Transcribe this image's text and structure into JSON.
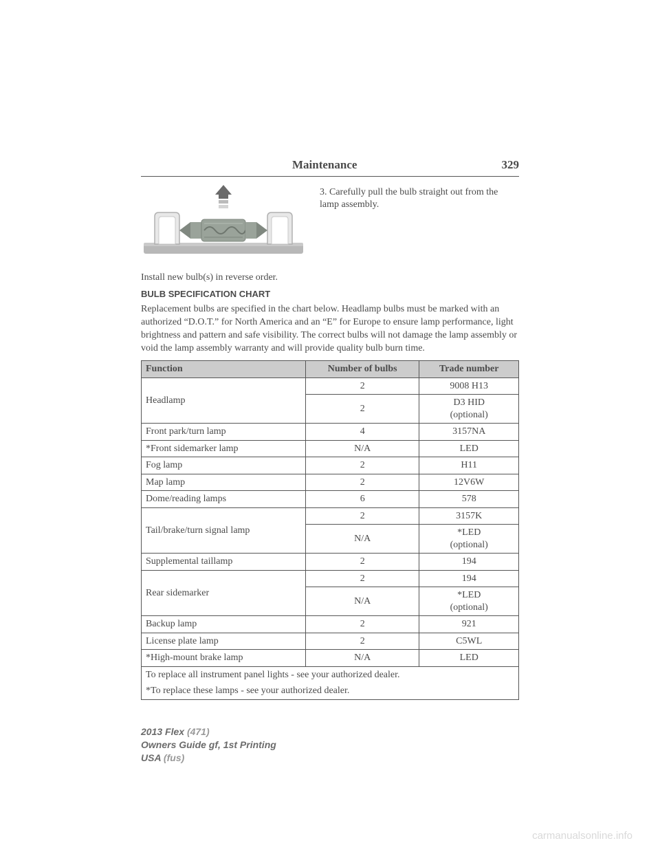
{
  "header": {
    "title": "Maintenance",
    "page_number": "329"
  },
  "step_text": "3. Carefully pull the bulb straight out from the lamp assembly.",
  "install_text": "Install new bulb(s) in reverse order.",
  "chart_heading": "BULB SPECIFICATION CHART",
  "intro_paragraph": "Replacement bulbs are specified in the chart below. Headlamp bulbs must be marked with an authorized “D.O.T.” for North America and an “E” for Europe to ensure lamp performance, light brightness and pattern and safe visibility. The correct bulbs will not damage the lamp assembly or void the lamp assembly warranty and will provide quality bulb burn time.",
  "table": {
    "columns": [
      "Function",
      "Number of bulbs",
      "Trade number"
    ],
    "rows": [
      {
        "func": "Headlamp",
        "rowspan": 2,
        "sub": [
          {
            "num": "2",
            "trade": "9008 H13"
          },
          {
            "num": "2",
            "trade": "D3 HID (optional)"
          }
        ]
      },
      {
        "func": "Front park/turn lamp",
        "num": "4",
        "trade": "3157NA"
      },
      {
        "func": "*Front sidemarker lamp",
        "num": "N/A",
        "trade": "LED"
      },
      {
        "func": "Fog lamp",
        "num": "2",
        "trade": "H11"
      },
      {
        "func": "Map lamp",
        "num": "2",
        "trade": "12V6W"
      },
      {
        "func": "Dome/reading lamps",
        "num": "6",
        "trade": "578"
      },
      {
        "func": "Tail/brake/turn signal lamp",
        "rowspan": 2,
        "sub": [
          {
            "num": "2",
            "trade": "3157K"
          },
          {
            "num": "N/A",
            "trade": "*LED (optional)"
          }
        ]
      },
      {
        "func": "Supplemental taillamp",
        "num": "2",
        "trade": "194"
      },
      {
        "func": "Rear sidemarker",
        "rowspan": 2,
        "sub": [
          {
            "num": "2",
            "trade": "194"
          },
          {
            "num": "N/A",
            "trade": "*LED (optional)"
          }
        ]
      },
      {
        "func": "Backup lamp",
        "num": "2",
        "trade": "921"
      },
      {
        "func": "License plate lamp",
        "num": "2",
        "trade": "C5WL"
      },
      {
        "func": "*High-mount brake lamp",
        "num": "N/A",
        "trade": "LED"
      }
    ],
    "footnote1": "To replace all instrument panel lights - see your authorized dealer.",
    "footnote2": "*To replace these lamps - see your authorized dealer."
  },
  "footer": {
    "line1_dark": "2013 Flex",
    "line1_light": " (471)",
    "line2": "Owners Guide gf, 1st Printing",
    "line3_dark": "USA",
    "line3_light": " (fus)"
  },
  "watermark": "carmanualsonline.info",
  "diagram": {
    "bg": "#f5f5f5",
    "base": "#b8b8b8",
    "base_dark": "#9e9e9e",
    "clip": "#e8e8e8",
    "clip_stroke": "#b0b0b0",
    "bulb_body": "#9aa39a",
    "bulb_cap": "#808880",
    "arrow": "#6a6a6a",
    "arrow_light": "#cccccc"
  }
}
